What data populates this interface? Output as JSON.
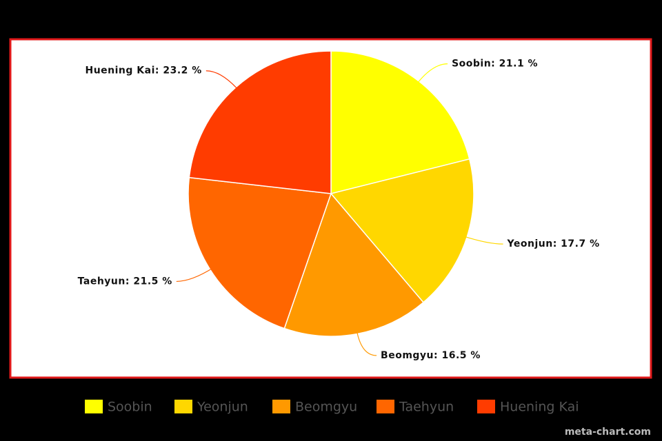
{
  "chart_data": {
    "type": "pie",
    "categories": [
      "Soobin",
      "Yeonjun",
      "Beomgyu",
      "Taehyun",
      "Huening Kai"
    ],
    "values": [
      21.1,
      17.7,
      16.5,
      21.5,
      23.2
    ],
    "value_labels": [
      "Soobin: 21.1 %",
      "Yeonjun: 17.7 %",
      "Beomgyu: 16.5 %",
      "Taehyun: 21.5 %",
      "Huening Kai: 23.2 %"
    ],
    "colors": [
      "#ffff00",
      "#ffd700",
      "#ff9900",
      "#ff6600",
      "#ff3c00"
    ],
    "legend": "bottom",
    "watermark": "meta-chart.com"
  }
}
